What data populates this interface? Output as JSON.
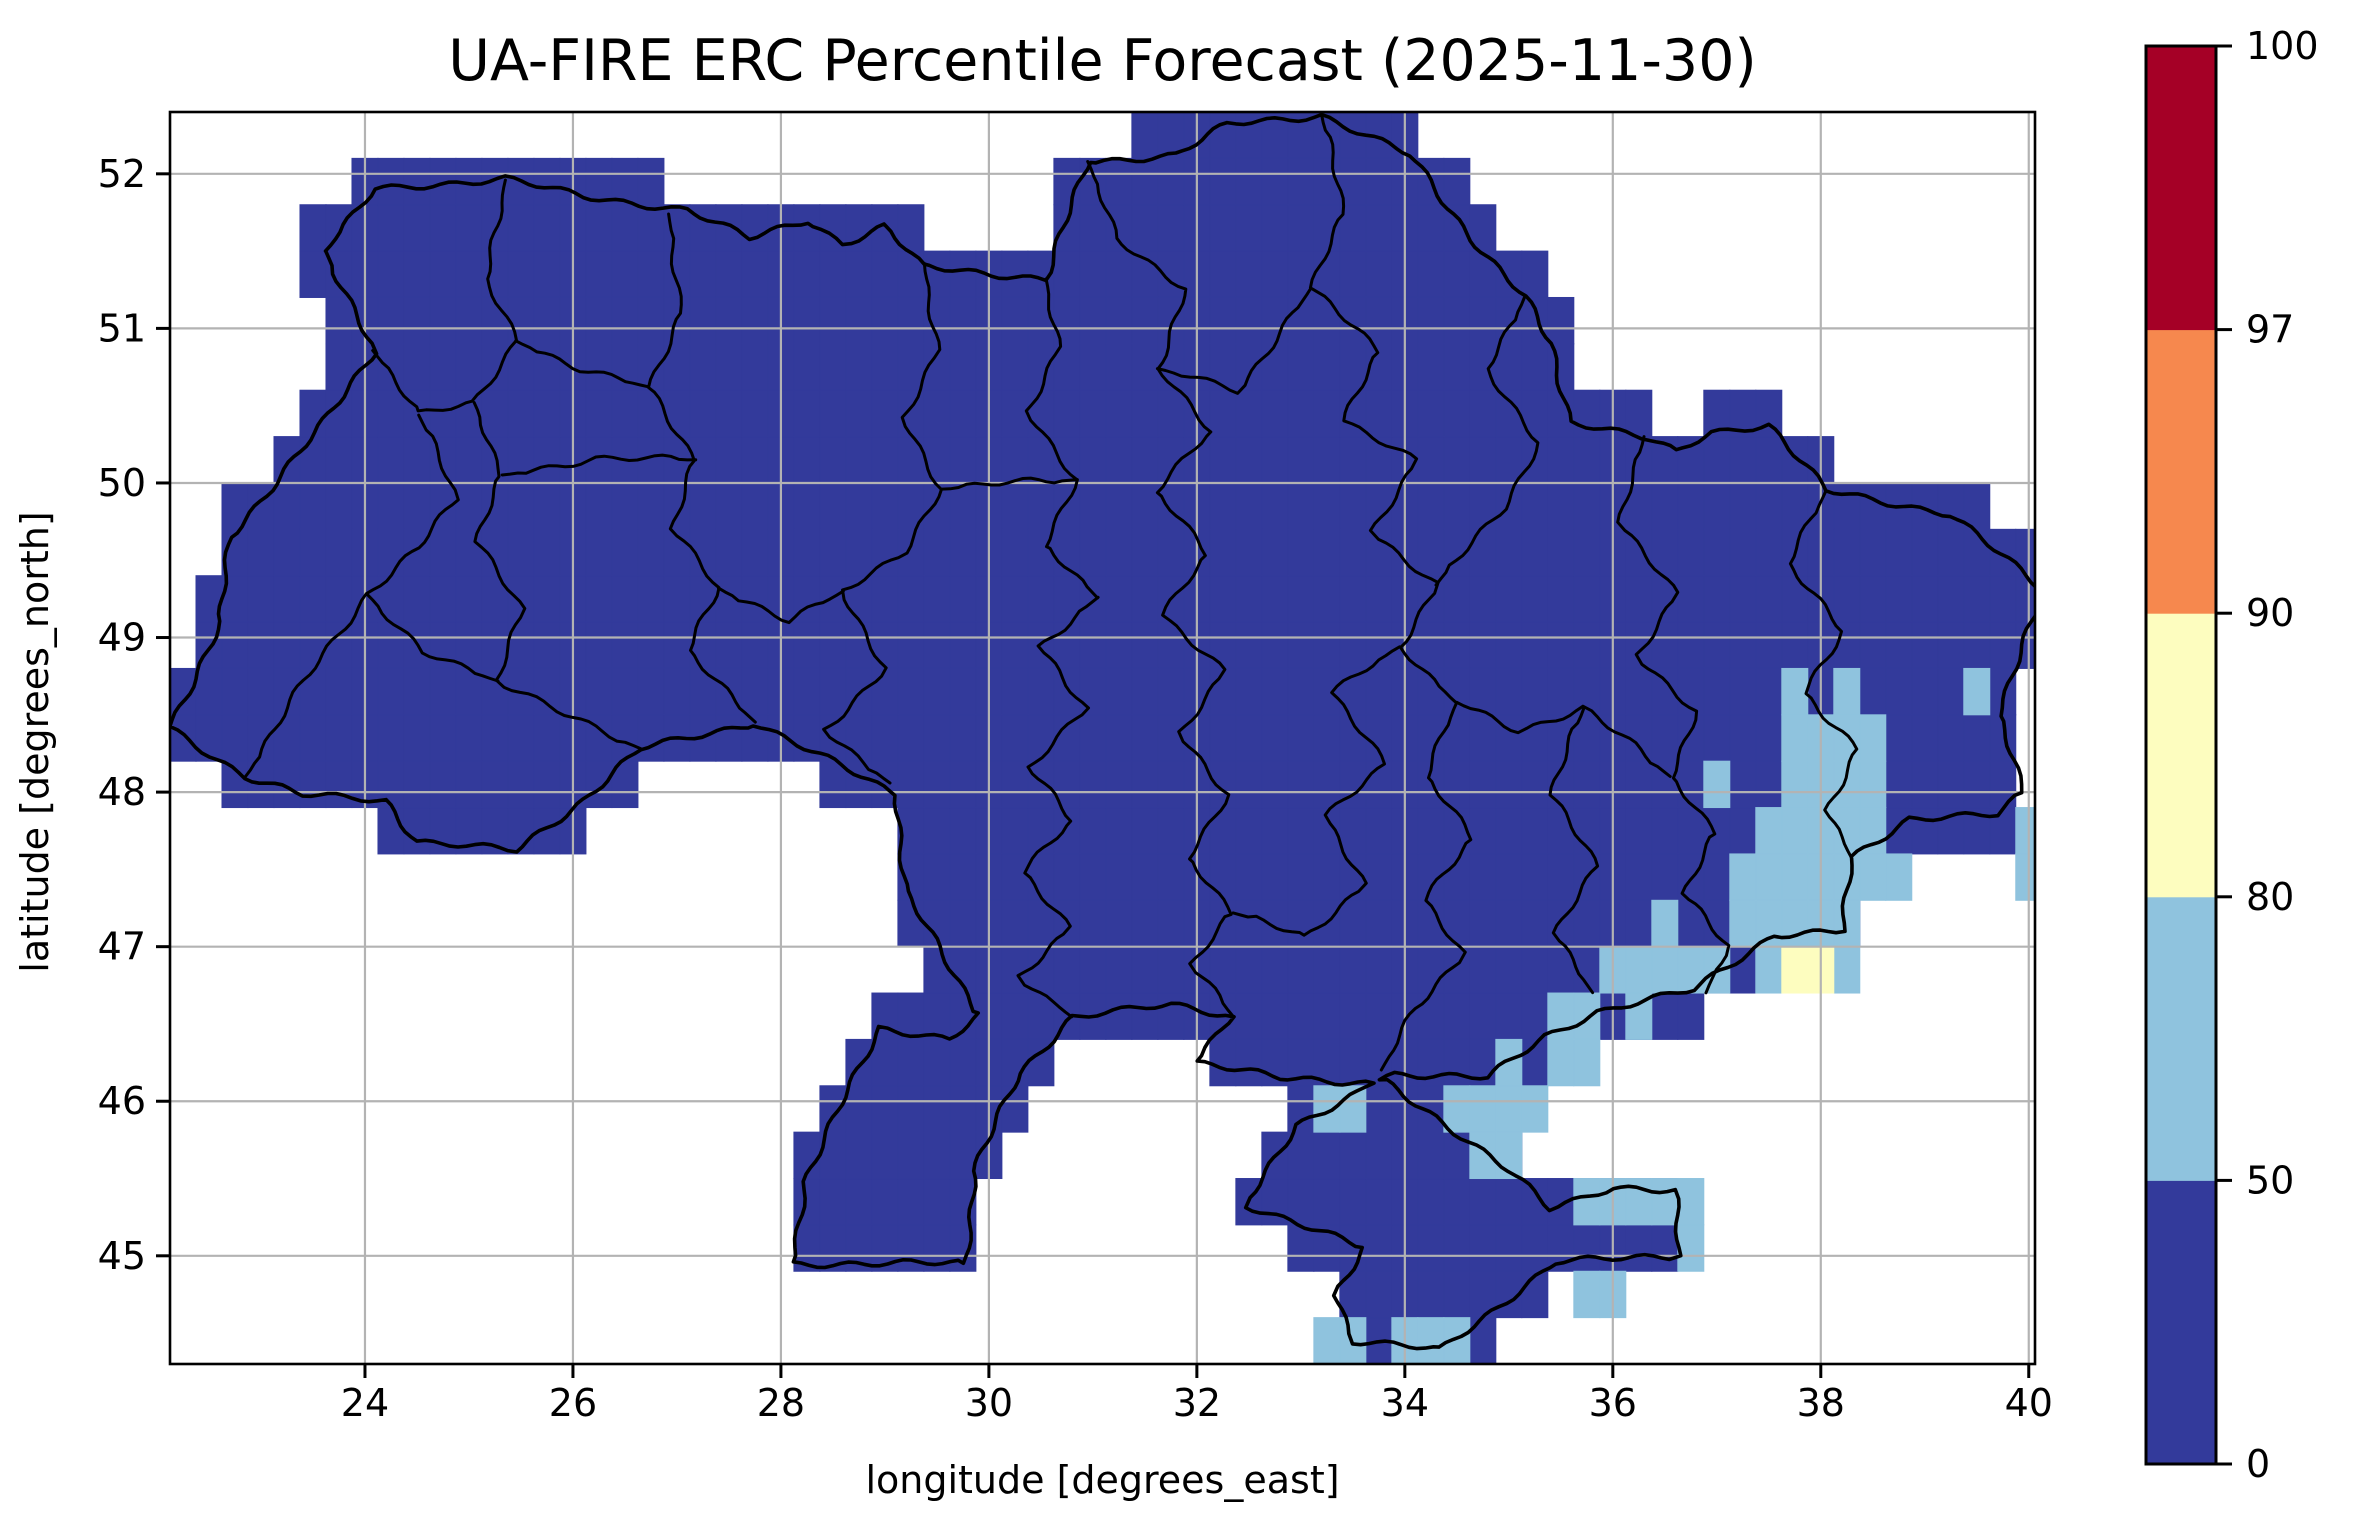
{
  "title": "UA-FIRE ERC Percentile Forecast (2025-11-30)",
  "axes": {
    "xlabel": "longitude [degrees_east]",
    "ylabel": "latitude [degrees_north]",
    "x_ticks": [
      24,
      26,
      28,
      30,
      32,
      34,
      36,
      38,
      40
    ],
    "y_ticks": [
      45,
      46,
      47,
      48,
      49,
      50,
      51,
      52
    ],
    "xlim": [
      22.125,
      40.06
    ],
    "ylim": [
      44.3,
      52.4
    ],
    "grid_color": "#b3b3b3"
  },
  "colorbar": {
    "boundaries": [
      0,
      50,
      80,
      90,
      97,
      100
    ],
    "tick_labels": [
      "0",
      "50",
      "80",
      "90",
      "97",
      "100"
    ],
    "segment_colors": [
      "#333a9b",
      "#8fc3de",
      "#fdfdbf",
      "#f6884e",
      "#a50026"
    ]
  },
  "chart_data": {
    "type": "heatmap",
    "title": "UA-FIRE ERC Percentile Forecast (2025-11-30)",
    "xlabel": "longitude [degrees_east]",
    "ylabel": "latitude [degrees_north]",
    "xlim": [
      22.125,
      40.06
    ],
    "ylim": [
      44.3,
      52.4
    ],
    "legend_position": "right-colorbar",
    "grid": true,
    "bins": [
      {
        "range": "0-50",
        "color": "#333a9b"
      },
      {
        "range": "50-80",
        "color": "#8fc3de"
      },
      {
        "range": "80-90",
        "color": "#fdfdbf"
      },
      {
        "range": "90-97",
        "color": "#f6884e"
      },
      {
        "range": "97-100",
        "color": "#a50026"
      }
    ],
    "cell_size": {
      "lon": 0.25,
      "lat": 0.3
    },
    "grid_origin": {
      "lon": 22.125,
      "lat": 44.3
    },
    "base_bin": "0-50",
    "country_border": [
      [
        23.62,
        51.5
      ],
      [
        24.1,
        51.9
      ],
      [
        25.35,
        51.97
      ],
      [
        26.1,
        51.85
      ],
      [
        27.1,
        51.77
      ],
      [
        27.7,
        51.58
      ],
      [
        28.25,
        51.7
      ],
      [
        28.6,
        51.55
      ],
      [
        29.0,
        51.66
      ],
      [
        29.35,
        51.4
      ],
      [
        30.55,
        51.32
      ],
      [
        30.95,
        52.08
      ],
      [
        31.8,
        52.12
      ],
      [
        32.3,
        52.32
      ],
      [
        33.2,
        52.38
      ],
      [
        34.05,
        52.12
      ],
      [
        34.42,
        51.78
      ],
      [
        34.75,
        51.5
      ],
      [
        35.15,
        51.2
      ],
      [
        35.4,
        50.9
      ],
      [
        35.6,
        50.4
      ],
      [
        36.35,
        50.28
      ],
      [
        36.6,
        50.2
      ],
      [
        36.95,
        50.33
      ],
      [
        37.5,
        50.38
      ],
      [
        38.05,
        49.95
      ],
      [
        39.25,
        49.8
      ],
      [
        40.15,
        49.3
      ],
      [
        39.9,
        48.85
      ],
      [
        39.7,
        48.5
      ],
      [
        39.95,
        48.0
      ],
      [
        39.7,
        47.85
      ],
      [
        38.85,
        47.83
      ],
      [
        38.3,
        47.58
      ],
      [
        38.22,
        47.1
      ],
      [
        37.55,
        47.08
      ],
      [
        36.78,
        46.72
      ],
      [
        35.85,
        46.58
      ],
      [
        35.35,
        46.42
      ],
      [
        34.8,
        46.15
      ],
      [
        33.9,
        46.18
      ],
      [
        33.75,
        46.15
      ],
      [
        34.3,
        45.9
      ],
      [
        35.0,
        45.55
      ],
      [
        35.4,
        45.3
      ],
      [
        36.0,
        45.45
      ],
      [
        36.6,
        45.42
      ],
      [
        36.62,
        45.0
      ],
      [
        35.45,
        44.96
      ],
      [
        34.35,
        44.39
      ],
      [
        33.5,
        44.45
      ],
      [
        33.35,
        44.75
      ],
      [
        33.6,
        45.05
      ],
      [
        32.48,
        45.33
      ],
      [
        32.95,
        45.85
      ],
      [
        33.55,
        46.05
      ],
      [
        33.7,
        46.12
      ],
      [
        32.8,
        46.15
      ],
      [
        32.0,
        46.25
      ],
      [
        32.35,
        46.55
      ],
      [
        31.75,
        46.62
      ],
      [
        30.8,
        46.55
      ],
      [
        30.3,
        46.18
      ],
      [
        29.85,
        45.55
      ],
      [
        29.78,
        44.95
      ],
      [
        28.12,
        44.95
      ],
      [
        28.22,
        45.48
      ],
      [
        28.95,
        46.48
      ],
      [
        29.62,
        46.4
      ],
      [
        29.92,
        46.55
      ],
      [
        29.55,
        46.95
      ],
      [
        29.2,
        47.35
      ],
      [
        29.12,
        47.98
      ],
      [
        27.75,
        48.45
      ],
      [
        26.65,
        48.28
      ],
      [
        26.1,
        47.95
      ],
      [
        25.45,
        47.62
      ],
      [
        24.5,
        47.68
      ],
      [
        24.2,
        47.95
      ],
      [
        23.4,
        47.98
      ],
      [
        22.85,
        48.1
      ],
      [
        22.12,
        48.42
      ],
      [
        22.62,
        49.1
      ],
      [
        22.7,
        49.65
      ],
      [
        23.62,
        50.4
      ],
      [
        24.08,
        50.85
      ]
    ],
    "oblast_lines": [
      [
        [
          25.35,
          51.96
        ],
        [
          25.18,
          51.32
        ],
        [
          25.45,
          50.92
        ],
        [
          25.05,
          50.52
        ],
        [
          24.52,
          50.44
        ],
        [
          24.08,
          50.86
        ]
      ],
      [
        [
          25.05,
          50.52
        ],
        [
          25.32,
          50.05
        ],
        [
          25.06,
          49.62
        ],
        [
          25.52,
          49.18
        ],
        [
          25.28,
          48.72
        ],
        [
          25.92,
          48.5
        ],
        [
          26.65,
          48.28
        ]
      ],
      [
        [
          26.92,
          51.74
        ],
        [
          27.05,
          51.1
        ],
        [
          26.72,
          50.62
        ],
        [
          27.18,
          50.15
        ],
        [
          26.95,
          49.7
        ],
        [
          27.4,
          49.32
        ],
        [
          27.12,
          48.92
        ],
        [
          27.56,
          48.58
        ],
        [
          27.75,
          48.45
        ]
      ],
      [
        [
          25.45,
          50.92
        ],
        [
          26.08,
          50.74
        ],
        [
          26.72,
          50.62
        ]
      ],
      [
        [
          27.18,
          50.15
        ],
        [
          26.22,
          50.16
        ],
        [
          25.32,
          50.05
        ]
      ],
      [
        [
          29.38,
          51.42
        ],
        [
          29.5,
          50.86
        ],
        [
          29.18,
          50.42
        ],
        [
          29.55,
          49.96
        ],
        [
          29.18,
          49.56
        ],
        [
          28.6,
          49.3
        ],
        [
          29.0,
          48.8
        ],
        [
          28.42,
          48.4
        ],
        [
          29.05,
          48.06
        ]
      ],
      [
        [
          27.4,
          49.32
        ],
        [
          28.08,
          49.1
        ],
        [
          28.6,
          49.3
        ]
      ],
      [
        [
          30.55,
          51.32
        ],
        [
          30.66,
          50.88
        ],
        [
          30.38,
          50.46
        ],
        [
          30.85,
          50.02
        ],
        [
          30.52,
          49.6
        ],
        [
          31.05,
          49.26
        ]
      ],
      [
        [
          29.55,
          49.96
        ],
        [
          30.18,
          50.0
        ],
        [
          30.85,
          50.02
        ]
      ],
      [
        [
          31.05,
          49.26
        ],
        [
          30.48,
          48.94
        ],
        [
          30.95,
          48.54
        ],
        [
          30.38,
          48.16
        ],
        [
          30.8,
          47.82
        ],
        [
          30.34,
          47.48
        ],
        [
          30.76,
          47.12
        ],
        [
          30.3,
          46.8
        ],
        [
          30.8,
          46.55
        ]
      ],
      [
        [
          30.95,
          52.08
        ],
        [
          31.22,
          51.58
        ],
        [
          31.9,
          51.26
        ],
        [
          31.62,
          50.74
        ],
        [
          32.15,
          50.34
        ],
        [
          31.6,
          49.95
        ],
        [
          32.1,
          49.54
        ],
        [
          31.68,
          49.14
        ],
        [
          32.25,
          48.78
        ],
        [
          31.85,
          48.38
        ],
        [
          32.3,
          47.98
        ],
        [
          31.9,
          47.58
        ],
        [
          32.35,
          47.22
        ],
        [
          31.95,
          46.88
        ],
        [
          32.35,
          46.55
        ]
      ],
      [
        [
          33.2,
          52.38
        ],
        [
          33.42,
          51.74
        ],
        [
          33.1,
          51.26
        ],
        [
          33.75,
          50.85
        ],
        [
          33.42,
          50.4
        ],
        [
          34.1,
          50.14
        ],
        [
          33.7,
          49.68
        ],
        [
          34.3,
          49.34
        ],
        [
          33.95,
          48.94
        ],
        [
          34.5,
          48.58
        ]
      ],
      [
        [
          31.62,
          50.74
        ],
        [
          32.4,
          50.6
        ],
        [
          33.1,
          51.26
        ]
      ],
      [
        [
          35.15,
          51.2
        ],
        [
          34.8,
          50.74
        ],
        [
          35.28,
          50.26
        ],
        [
          34.95,
          49.84
        ],
        [
          34.3,
          49.34
        ]
      ],
      [
        [
          34.5,
          48.58
        ],
        [
          35.1,
          48.4
        ],
        [
          35.72,
          48.54
        ],
        [
          36.2,
          48.3
        ],
        [
          36.55,
          48.1
        ]
      ],
      [
        [
          36.3,
          50.3
        ],
        [
          36.08,
          49.74
        ],
        [
          36.6,
          49.28
        ],
        [
          36.25,
          48.88
        ],
        [
          36.8,
          48.52
        ],
        [
          36.55,
          48.1
        ],
        [
          37.0,
          47.74
        ],
        [
          36.68,
          47.34
        ],
        [
          37.1,
          47.0
        ],
        [
          36.9,
          46.7
        ]
      ],
      [
        [
          38.05,
          49.95
        ],
        [
          37.7,
          49.48
        ],
        [
          38.2,
          49.04
        ],
        [
          37.85,
          48.64
        ],
        [
          38.35,
          48.28
        ],
        [
          38.05,
          47.88
        ],
        [
          38.3,
          47.58
        ]
      ],
      [
        [
          33.95,
          48.94
        ],
        [
          33.3,
          48.64
        ],
        [
          33.8,
          48.18
        ],
        [
          33.25,
          47.84
        ],
        [
          33.6,
          47.4
        ],
        [
          33.05,
          47.06
        ],
        [
          32.35,
          47.22
        ]
      ],
      [
        [
          35.72,
          48.54
        ],
        [
          35.4,
          47.98
        ],
        [
          35.85,
          47.52
        ],
        [
          35.45,
          47.08
        ],
        [
          35.8,
          46.7
        ]
      ],
      [
        [
          34.5,
          48.58
        ],
        [
          34.2,
          48.1
        ],
        [
          34.65,
          47.7
        ],
        [
          34.2,
          47.3
        ],
        [
          34.55,
          46.95
        ],
        [
          34.1,
          46.6
        ],
        [
          33.78,
          46.2
        ]
      ],
      [
        [
          22.85,
          48.1
        ],
        [
          23.42,
          48.72
        ],
        [
          24.02,
          49.28
        ],
        [
          24.52,
          49.58
        ],
        [
          24.88,
          49.9
        ],
        [
          24.52,
          50.44
        ]
      ],
      [
        [
          24.02,
          49.28
        ],
        [
          24.55,
          48.9
        ],
        [
          25.28,
          48.72
        ]
      ]
    ],
    "cells_50_80": [
      [
        37.625,
        48.5
      ],
      [
        38.125,
        48.5
      ],
      [
        39.375,
        48.5
      ],
      [
        37.625,
        48.2
      ],
      [
        37.875,
        48.2
      ],
      [
        38.125,
        48.2
      ],
      [
        38.375,
        48.2
      ],
      [
        36.875,
        47.9
      ],
      [
        37.625,
        47.9
      ],
      [
        37.875,
        47.9
      ],
      [
        38.125,
        47.9
      ],
      [
        38.375,
        47.9
      ],
      [
        37.375,
        47.6
      ],
      [
        37.625,
        47.6
      ],
      [
        37.875,
        47.6
      ],
      [
        38.125,
        47.6
      ],
      [
        38.375,
        47.6
      ],
      [
        39.875,
        47.6
      ],
      [
        37.125,
        47.3
      ],
      [
        37.375,
        47.3
      ],
      [
        37.625,
        47.3
      ],
      [
        37.875,
        47.3
      ],
      [
        38.125,
        47.3
      ],
      [
        38.375,
        47.3
      ],
      [
        38.625,
        47.3
      ],
      [
        39.875,
        47.3
      ],
      [
        36.375,
        47.0
      ],
      [
        37.125,
        47.0
      ],
      [
        37.375,
        47.0
      ],
      [
        37.625,
        47.0
      ],
      [
        37.875,
        47.0
      ],
      [
        38.125,
        47.0
      ],
      [
        35.875,
        46.7
      ],
      [
        36.125,
        46.7
      ],
      [
        36.375,
        46.7
      ],
      [
        36.625,
        46.7
      ],
      [
        36.875,
        46.7
      ],
      [
        37.375,
        46.7
      ],
      [
        38.125,
        46.7
      ],
      [
        35.375,
        46.4
      ],
      [
        35.625,
        46.4
      ],
      [
        36.125,
        46.4
      ],
      [
        34.875,
        46.1
      ],
      [
        35.375,
        46.1
      ],
      [
        35.625,
        46.1
      ],
      [
        33.125,
        45.8
      ],
      [
        33.375,
        45.8
      ],
      [
        34.375,
        45.8
      ],
      [
        34.625,
        45.8
      ],
      [
        34.875,
        45.8
      ],
      [
        35.125,
        45.8
      ],
      [
        34.625,
        45.5
      ],
      [
        34.875,
        45.5
      ],
      [
        35.625,
        45.2
      ],
      [
        35.875,
        45.2
      ],
      [
        36.125,
        45.2
      ],
      [
        36.375,
        45.2
      ],
      [
        36.625,
        45.2
      ],
      [
        36.625,
        44.9
      ],
      [
        35.625,
        44.6
      ],
      [
        35.875,
        44.6
      ],
      [
        33.125,
        44.3
      ],
      [
        33.375,
        44.3
      ],
      [
        33.875,
        44.3
      ],
      [
        34.125,
        44.3
      ],
      [
        34.375,
        44.3
      ]
    ],
    "cells_80_90": [
      [
        37.625,
        46.7
      ],
      [
        37.875,
        46.7
      ]
    ]
  }
}
